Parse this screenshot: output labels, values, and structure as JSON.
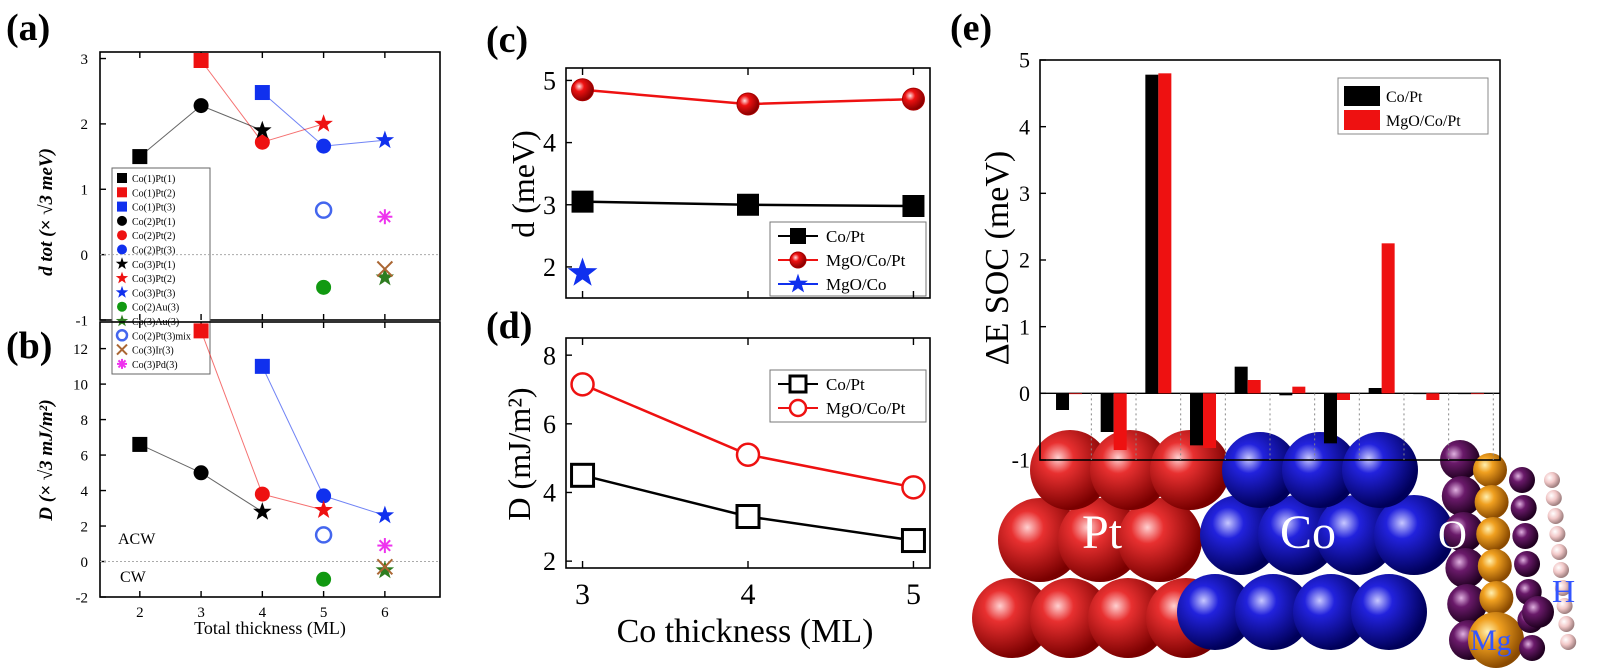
{
  "colors": {
    "black": "#000000",
    "red": "#ee1111",
    "blue": "#1030ee",
    "green": "#119911",
    "olive": "#2e7d20",
    "hollow_blue": "#4466ee",
    "brown": "#aa6633",
    "magenta": "#ee33ee"
  },
  "chart_data": [
    {
      "id": "a",
      "panel_label": "(a)",
      "type": "scatter",
      "ylabel": "d tot (× √3 meV)",
      "xlabel": "",
      "ylim": [
        -1,
        3.1
      ],
      "yticks": [
        -1,
        0,
        1,
        2,
        3
      ],
      "series": [
        {
          "name": "Co(1)Pt(1)",
          "marker": "square",
          "color": "#000000",
          "points": [
            [
              2,
              1.5
            ]
          ]
        },
        {
          "name": "Co(1)Pt(2)",
          "marker": "square",
          "color": "#ee1111",
          "points": [
            [
              3,
              2.97
            ]
          ]
        },
        {
          "name": "Co(1)Pt(3)",
          "marker": "square",
          "color": "#1030ee",
          "points": [
            [
              4,
              2.48
            ]
          ]
        },
        {
          "name": "Co(2)Pt(1)",
          "marker": "circle",
          "color": "#000000",
          "points": [
            [
              2,
              1.5
            ],
            [
              3,
              2.28
            ]
          ]
        },
        {
          "name": "Co(2)Pt(2)",
          "marker": "circle",
          "color": "#ee1111",
          "points": [
            [
              3,
              2.97
            ],
            [
              4,
              1.72
            ]
          ]
        },
        {
          "name": "Co(2)Pt(3)",
          "marker": "circle",
          "color": "#1030ee",
          "points": [
            [
              4,
              2.48
            ],
            [
              5,
              1.66
            ]
          ]
        },
        {
          "name": "Co(3)Pt(1)",
          "marker": "star",
          "color": "#000000",
          "points": [
            [
              3,
              2.28
            ],
            [
              4,
              1.9
            ]
          ]
        },
        {
          "name": "Co(3)Pt(2)",
          "marker": "star",
          "color": "#ee1111",
          "points": [
            [
              4,
              1.72
            ],
            [
              5,
              2.0
            ]
          ]
        },
        {
          "name": "Co(3)Pt(3)",
          "marker": "star",
          "color": "#1030ee",
          "points": [
            [
              5,
              1.66
            ],
            [
              6,
              1.75
            ]
          ]
        },
        {
          "name": "Co(2)Au(3)",
          "marker": "circle",
          "color": "#119911",
          "points": [
            [
              5,
              -0.5
            ]
          ]
        },
        {
          "name": "Co(3)Au(3)",
          "marker": "star",
          "color": "#2e7d20",
          "points": [
            [
              6,
              -0.35
            ]
          ]
        },
        {
          "name": "Co(2)Pt(3)mix",
          "marker": "circle-open",
          "color": "#4466ee",
          "points": [
            [
              5,
              0.68
            ]
          ]
        },
        {
          "name": "Co(3)Ir(3)",
          "marker": "x",
          "color": "#aa6633",
          "points": [
            [
              6,
              -0.22
            ]
          ]
        },
        {
          "name": "Co(3)Pd(3)",
          "marker": "asterisk",
          "color": "#ee33ee",
          "points": [
            [
              6,
              0.58
            ]
          ]
        }
      ]
    },
    {
      "id": "b",
      "panel_label": "(b)",
      "type": "scatter",
      "ylabel": "D (× √3 mJ/m²)",
      "xlabel": "Total thickness (ML)",
      "xticks": [
        2,
        3,
        4,
        5,
        6
      ],
      "ylim": [
        -2,
        13.5
      ],
      "yticks": [
        -2,
        0,
        2,
        4,
        6,
        8,
        10,
        12
      ],
      "text_labels": [
        "ACW",
        "CW"
      ],
      "series": [
        {
          "name": "Co(1)Pt(1)",
          "marker": "square",
          "color": "#000000",
          "points": [
            [
              2,
              6.6
            ]
          ]
        },
        {
          "name": "Co(1)Pt(2)",
          "marker": "square",
          "color": "#ee1111",
          "points": [
            [
              3,
              13.0
            ]
          ]
        },
        {
          "name": "Co(1)Pt(3)",
          "marker": "square",
          "color": "#1030ee",
          "points": [
            [
              4,
              11.0
            ]
          ]
        },
        {
          "name": "Co(2)Pt(1)",
          "marker": "circle",
          "color": "#000000",
          "points": [
            [
              2,
              6.6
            ],
            [
              3,
              5.0
            ]
          ]
        },
        {
          "name": "Co(2)Pt(2)",
          "marker": "circle",
          "color": "#ee1111",
          "points": [
            [
              3,
              13.0
            ],
            [
              4,
              3.8
            ]
          ]
        },
        {
          "name": "Co(2)Pt(3)",
          "marker": "circle",
          "color": "#1030ee",
          "points": [
            [
              4,
              11.0
            ],
            [
              5,
              3.7
            ]
          ]
        },
        {
          "name": "Co(3)Pt(1)",
          "marker": "star",
          "color": "#000000",
          "points": [
            [
              3,
              5.0
            ],
            [
              4,
              2.8
            ]
          ]
        },
        {
          "name": "Co(3)Pt(2)",
          "marker": "star",
          "color": "#ee1111",
          "points": [
            [
              4,
              3.8
            ],
            [
              5,
              2.9
            ]
          ]
        },
        {
          "name": "Co(3)Pt(3)",
          "marker": "star",
          "color": "#1030ee",
          "points": [
            [
              5,
              3.7
            ],
            [
              6,
              2.6
            ]
          ]
        },
        {
          "name": "Co(2)Au(3)",
          "marker": "circle",
          "color": "#119911",
          "points": [
            [
              5,
              -1.0
            ]
          ]
        },
        {
          "name": "Co(3)Au(3)",
          "marker": "star",
          "color": "#2e7d20",
          "points": [
            [
              6,
              -0.5
            ]
          ]
        },
        {
          "name": "Co(2)Pt(3)mix",
          "marker": "circle-open",
          "color": "#4466ee",
          "points": [
            [
              5,
              1.5
            ]
          ]
        },
        {
          "name": "Co(3)Ir(3)",
          "marker": "x",
          "color": "#aa6633",
          "points": [
            [
              6,
              -0.3
            ]
          ]
        },
        {
          "name": "Co(3)Pd(3)",
          "marker": "asterisk",
          "color": "#ee33ee",
          "points": [
            [
              6,
              0.9
            ]
          ]
        }
      ]
    },
    {
      "id": "c",
      "panel_label": "(c)",
      "type": "line",
      "ylabel": "d (meV)",
      "ylim": [
        1.5,
        5.2
      ],
      "yticks": [
        2,
        3,
        4,
        5
      ],
      "xlim": [
        2.9,
        5.1
      ],
      "series": [
        {
          "name": "Co/Pt",
          "marker": "square",
          "color": "#000000",
          "x": [
            3,
            4,
            5
          ],
          "y": [
            3.05,
            3.0,
            2.98
          ]
        },
        {
          "name": "MgO/Co/Pt",
          "marker": "ball",
          "color": "#ee1111",
          "x": [
            3,
            4,
            5
          ],
          "y": [
            4.85,
            4.62,
            4.7
          ]
        },
        {
          "name": "MgO/Co",
          "marker": "star",
          "color": "#1030ee",
          "x": [
            3
          ],
          "y": [
            1.9
          ]
        }
      ],
      "legend": "bottom-right"
    },
    {
      "id": "d",
      "panel_label": "(d)",
      "type": "line",
      "ylabel": "D (mJ/m²)",
      "xlabel": "Co thickness (ML)",
      "xticks": [
        3,
        4,
        5
      ],
      "xlim": [
        2.9,
        5.1
      ],
      "ylim": [
        1.8,
        8.5
      ],
      "yticks": [
        2,
        4,
        6,
        8
      ],
      "series": [
        {
          "name": "Co/Pt",
          "marker": "square-open",
          "color": "#000000",
          "x": [
            3,
            4,
            5
          ],
          "y": [
            4.5,
            3.3,
            2.6
          ]
        },
        {
          "name": "MgO/Co/Pt",
          "marker": "circle-open",
          "color": "#ee1111",
          "x": [
            3,
            4,
            5
          ],
          "y": [
            7.15,
            5.1,
            4.15
          ]
        }
      ],
      "legend": "top-right"
    },
    {
      "id": "e",
      "panel_label": "(e)",
      "type": "bar",
      "ylabel": "ΔE SOC (meV)",
      "ylim": [
        -1,
        5
      ],
      "yticks": [
        -1,
        0,
        1,
        2,
        3,
        4,
        5
      ],
      "atom_labels": [
        "Pt",
        "Co",
        "O",
        "Mg",
        "H"
      ],
      "series": [
        {
          "name": "Co/Pt",
          "color": "#000000",
          "values": [
            -0.25,
            -0.58,
            4.78,
            -0.78,
            0.4,
            -0.03,
            -0.75,
            0.08,
            0.0,
            0.0
          ]
        },
        {
          "name": "MgO/Co/Pt",
          "color": "#ee1111",
          "values": [
            0.0,
            -0.85,
            4.8,
            -0.82,
            0.2,
            0.1,
            -0.1,
            2.25,
            -0.1,
            0.0
          ]
        }
      ],
      "legend": "top-right"
    }
  ]
}
